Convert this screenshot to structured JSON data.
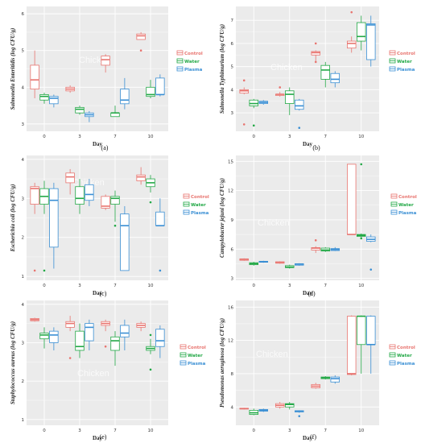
{
  "colors": {
    "control": "#e8746f",
    "water": "#22a846",
    "plasma": "#3a8fd4",
    "panel_bg": "#ebebeb",
    "grid": "#ffffff"
  },
  "legend": [
    "Control",
    "Water",
    "Plasma"
  ],
  "watermark": "Chicken",
  "chart_data": [
    {
      "type": "box",
      "panel_label": "(a)",
      "ylabel": "Salmonella Enteritidis (log CFU/g)",
      "xlabel": "Day",
      "categories": [
        "0",
        "3",
        "7",
        "10"
      ],
      "ylim": [
        2.8,
        6.2
      ],
      "yticks": [
        "3",
        "4",
        "5",
        "6"
      ],
      "series": [
        {
          "name": "Control",
          "boxes": [
            {
              "min": 3.7,
              "q1": 3.95,
              "med": 4.2,
              "q3": 4.6,
              "max": 5.0
            },
            {
              "min": 3.85,
              "q1": 3.9,
              "med": 3.95,
              "q3": 4.0,
              "max": 4.05
            },
            {
              "min": 4.4,
              "q1": 4.6,
              "med": 4.75,
              "q3": 4.85,
              "max": 4.9
            },
            {
              "min": 5.3,
              "q1": 5.3,
              "med": 5.4,
              "q3": 5.45,
              "max": 5.5
            }
          ],
          "outliers": [
            [],
            [],
            [],
            [
              5.0
            ]
          ]
        },
        {
          "name": "Water",
          "boxes": [
            {
              "min": 3.55,
              "q1": 3.65,
              "med": 3.75,
              "q3": 3.8,
              "max": 3.85
            },
            {
              "min": 3.25,
              "q1": 3.3,
              "med": 3.4,
              "q3": 3.45,
              "max": 3.5
            },
            {
              "min": 3.2,
              "q1": 3.2,
              "med": 3.3,
              "q3": 3.3,
              "max": 3.5
            },
            {
              "min": 3.7,
              "q1": 3.75,
              "med": 3.8,
              "q3": 4.0,
              "max": 4.2
            }
          ],
          "outliers": [
            [],
            [],
            [],
            []
          ]
        },
        {
          "name": "Plasma",
          "boxes": [
            {
              "min": 3.45,
              "q1": 3.55,
              "med": 3.7,
              "q3": 3.75,
              "max": 3.8
            },
            {
              "min": 3.05,
              "q1": 3.2,
              "med": 3.25,
              "q3": 3.3,
              "max": 3.35
            },
            {
              "min": 3.4,
              "q1": 3.55,
              "med": 3.65,
              "q3": 3.95,
              "max": 4.25
            },
            {
              "min": 3.75,
              "q1": 3.8,
              "med": 3.8,
              "q3": 4.25,
              "max": 4.35
            }
          ],
          "outliers": [
            [],
            [],
            [],
            []
          ]
        }
      ]
    },
    {
      "type": "box",
      "panel_label": "(b)",
      "ylabel": "Salmonella Typhimurium (log CFU/g)",
      "xlabel": "Day",
      "categories": [
        "0",
        "3",
        "7",
        "10"
      ],
      "ylim": [
        2.2,
        7.6
      ],
      "yticks": [
        "3",
        "4",
        "5",
        "6",
        "7"
      ],
      "series": [
        {
          "name": "Control",
          "boxes": [
            {
              "min": 3.8,
              "q1": 3.85,
              "med": 3.95,
              "q3": 4.0,
              "max": 4.1
            },
            {
              "min": 3.7,
              "q1": 3.75,
              "med": 3.8,
              "q3": 3.8,
              "max": 3.9
            },
            {
              "min": 5.2,
              "q1": 5.5,
              "med": 5.6,
              "q3": 5.65,
              "max": 5.7
            },
            {
              "min": 5.6,
              "q1": 5.8,
              "med": 6.0,
              "q3": 6.1,
              "max": 6.3
            }
          ],
          "outliers": [
            [
              2.5,
              4.4
            ],
            [
              4.1
            ],
            [
              5.2,
              6.0
            ],
            [
              7.35
            ]
          ]
        },
        {
          "name": "Water",
          "boxes": [
            {
              "min": 3.2,
              "q1": 3.3,
              "med": 3.4,
              "q3": 3.55,
              "max": 3.6
            },
            {
              "min": 2.9,
              "q1": 3.4,
              "med": 3.8,
              "q3": 3.95,
              "max": 4.1
            },
            {
              "min": 4.1,
              "q1": 4.45,
              "med": 4.85,
              "q3": 5.05,
              "max": 5.2
            },
            {
              "min": 5.7,
              "q1": 6.1,
              "med": 6.3,
              "q3": 6.9,
              "max": 7.2
            }
          ],
          "outliers": [
            [
              2.45
            ],
            [],
            [],
            []
          ]
        },
        {
          "name": "Plasma",
          "boxes": [
            {
              "min": 3.35,
              "q1": 3.4,
              "med": 3.45,
              "q3": 3.5,
              "max": 3.55
            },
            {
              "min": 3.1,
              "q1": 3.15,
              "med": 3.3,
              "q3": 3.55,
              "max": 3.6
            },
            {
              "min": 4.1,
              "q1": 4.3,
              "med": 4.45,
              "q3": 4.7,
              "max": 4.8
            },
            {
              "min": 5.0,
              "q1": 5.3,
              "med": 6.8,
              "q3": 6.85,
              "max": 7.2
            }
          ],
          "outliers": [
            [],
            [
              2.35
            ],
            [],
            []
          ]
        }
      ]
    },
    {
      "type": "box",
      "panel_label": "(c)",
      "ylabel": "Escherichia coli (log CFU/g)",
      "xlabel": "Day",
      "categories": [
        "0",
        "3",
        "7",
        "10"
      ],
      "ylim": [
        0.9,
        4.1
      ],
      "yticks": [
        "1",
        "2",
        "3",
        "4"
      ],
      "series": [
        {
          "name": "Control",
          "boxes": [
            {
              "min": 2.6,
              "q1": 2.85,
              "med": 3.25,
              "q3": 3.3,
              "max": 3.4
            },
            {
              "min": 3.1,
              "q1": 3.4,
              "med": 3.55,
              "q3": 3.65,
              "max": 3.75
            },
            {
              "min": 2.7,
              "q1": 2.75,
              "med": 2.8,
              "q3": 3.05,
              "max": 3.1
            },
            {
              "min": 3.35,
              "q1": 3.45,
              "med": 3.55,
              "q3": 3.6,
              "max": 3.8
            }
          ],
          "outliers": [
            [
              1.15
            ],
            [],
            [],
            []
          ]
        },
        {
          "name": "Water",
          "boxes": [
            {
              "min": 2.6,
              "q1": 2.85,
              "med": 3.05,
              "q3": 3.25,
              "max": 3.45
            },
            {
              "min": 2.6,
              "q1": 2.85,
              "med": 3.0,
              "q3": 3.3,
              "max": 3.5
            },
            {
              "min": 2.4,
              "q1": 2.85,
              "med": 3.0,
              "q3": 3.05,
              "max": 3.2
            },
            {
              "min": 3.15,
              "q1": 3.3,
              "med": 3.4,
              "q3": 3.5,
              "max": 3.6
            }
          ],
          "outliers": [
            [
              1.15
            ],
            [],
            [
              2.3
            ],
            [
              2.9
            ]
          ]
        },
        {
          "name": "Plasma",
          "boxes": [
            {
              "min": 1.2,
              "q1": 1.75,
              "med": 2.95,
              "q3": 3.25,
              "max": 3.4
            },
            {
              "min": 2.8,
              "q1": 2.95,
              "med": 3.1,
              "q3": 3.35,
              "max": 3.5
            },
            {
              "min": 1.15,
              "q1": 1.15,
              "med": 2.3,
              "q3": 2.6,
              "max": 2.8
            },
            {
              "min": 2.3,
              "q1": 2.3,
              "med": 2.3,
              "q3": 2.65,
              "max": 3.0
            }
          ],
          "outliers": [
            [],
            [],
            [],
            [
              1.15
            ]
          ]
        }
      ]
    },
    {
      "type": "box",
      "panel_label": "(d)",
      "ylabel": "Campylobacter jejuni (log CFU/g)",
      "xlabel": "Day",
      "categories": [
        "0",
        "3",
        "7",
        "10"
      ],
      "ylim": [
        2.8,
        15.6
      ],
      "yticks": [
        "3",
        "6",
        "9",
        "12",
        "15"
      ],
      "series": [
        {
          "name": "Control",
          "boxes": [
            {
              "min": 4.8,
              "q1": 4.85,
              "med": 4.95,
              "q3": 5.0,
              "max": 5.05
            },
            {
              "min": 4.5,
              "q1": 4.55,
              "med": 4.6,
              "q3": 4.7,
              "max": 4.75
            },
            {
              "min": 5.6,
              "q1": 5.9,
              "med": 6.1,
              "q3": 6.15,
              "max": 6.3
            },
            {
              "min": 7.5,
              "q1": 7.5,
              "med": 7.5,
              "q3": 14.7,
              "max": 14.7
            }
          ],
          "outliers": [
            [],
            [],
            [
              6.9
            ],
            []
          ]
        },
        {
          "name": "Water",
          "boxes": [
            {
              "min": 4.3,
              "q1": 4.4,
              "med": 4.5,
              "q3": 4.6,
              "max": 4.7
            },
            {
              "min": 4.0,
              "q1": 4.1,
              "med": 4.15,
              "q3": 4.3,
              "max": 4.4
            },
            {
              "min": 5.7,
              "q1": 5.8,
              "med": 5.9,
              "q3": 6.1,
              "max": 6.2
            },
            {
              "min": 7.2,
              "q1": 7.3,
              "med": 7.4,
              "q3": 7.5,
              "max": 7.6
            }
          ],
          "outliers": [
            [],
            [],
            [],
            [
              14.7,
              7.1
            ]
          ]
        },
        {
          "name": "Plasma",
          "boxes": [
            {
              "min": 4.6,
              "q1": 4.65,
              "med": 4.7,
              "q3": 4.75,
              "max": 4.8
            },
            {
              "min": 4.3,
              "q1": 4.35,
              "med": 4.45,
              "q3": 4.5,
              "max": 4.55
            },
            {
              "min": 5.8,
              "q1": 5.85,
              "med": 5.95,
              "q3": 6.05,
              "max": 6.2
            },
            {
              "min": 6.7,
              "q1": 6.8,
              "med": 7.0,
              "q3": 7.25,
              "max": 7.5
            }
          ],
          "outliers": [
            [],
            [],
            [],
            [
              3.9
            ]
          ]
        }
      ]
    },
    {
      "type": "box",
      "panel_label": "(e)",
      "ylabel": "Staphylococcus aureus (log CFU/g)",
      "xlabel": "Day",
      "categories": [
        "0",
        "3",
        "7",
        "10"
      ],
      "ylim": [
        0.85,
        4.1
      ],
      "yticks": [
        "1",
        "2",
        "3",
        "4"
      ],
      "series": [
        {
          "name": "Control",
          "boxes": [
            {
              "min": 3.55,
              "q1": 3.57,
              "med": 3.6,
              "q3": 3.63,
              "max": 3.65
            },
            {
              "min": 3.3,
              "q1": 3.4,
              "med": 3.5,
              "q3": 3.55,
              "max": 3.7
            },
            {
              "min": 3.3,
              "q1": 3.45,
              "med": 3.5,
              "q3": 3.55,
              "max": 3.6
            },
            {
              "min": 3.3,
              "q1": 3.4,
              "med": 3.45,
              "q3": 3.5,
              "max": 3.55
            }
          ],
          "outliers": [
            [],
            [
              2.6
            ],
            [
              2.9
            ],
            []
          ]
        },
        {
          "name": "Water",
          "boxes": [
            {
              "min": 2.85,
              "q1": 3.1,
              "med": 3.2,
              "q3": 3.25,
              "max": 3.4
            },
            {
              "min": 2.6,
              "q1": 2.8,
              "med": 2.9,
              "q3": 3.3,
              "max": 3.5
            },
            {
              "min": 2.4,
              "q1": 2.8,
              "med": 3.05,
              "q3": 3.15,
              "max": 3.3
            },
            {
              "min": 2.7,
              "q1": 2.8,
              "med": 2.85,
              "q3": 2.9,
              "max": 3.1
            }
          ],
          "outliers": [
            [],
            [],
            [],
            [
              2.3,
              3.2
            ]
          ]
        },
        {
          "name": "Plasma",
          "boxes": [
            {
              "min": 2.8,
              "q1": 3.0,
              "med": 3.2,
              "q3": 3.3,
              "max": 3.4
            },
            {
              "min": 2.8,
              "q1": 3.05,
              "med": 3.4,
              "q3": 3.5,
              "max": 3.6
            },
            {
              "min": 2.8,
              "q1": 3.15,
              "med": 3.25,
              "q3": 3.45,
              "max": 3.6
            },
            {
              "min": 2.6,
              "q1": 2.9,
              "med": 3.05,
              "q3": 3.35,
              "max": 3.45
            }
          ],
          "outliers": [
            [],
            [],
            [],
            []
          ]
        }
      ]
    },
    {
      "type": "box",
      "panel_label": "(f)",
      "ylabel": "Pseudomonas aeruginosa (log CFU/g)",
      "xlabel": "Day",
      "categories": [
        "0",
        "3",
        "7",
        "10"
      ],
      "ylim": [
        1.8,
        16.8
      ],
      "yticks": [
        "4",
        "8",
        "12",
        "16"
      ],
      "series": [
        {
          "name": "Control",
          "boxes": [
            {
              "min": 3.7,
              "q1": 3.75,
              "med": 3.8,
              "q3": 3.85,
              "max": 3.9
            },
            {
              "min": 3.8,
              "q1": 4.0,
              "med": 4.2,
              "q3": 4.4,
              "max": 4.6
            },
            {
              "min": 6.2,
              "q1": 6.3,
              "med": 6.5,
              "q3": 6.7,
              "max": 6.9
            },
            {
              "min": 7.8,
              "q1": 7.9,
              "med": 8.0,
              "q3": 14.9,
              "max": 15.0
            }
          ],
          "outliers": [
            [],
            [],
            [],
            []
          ]
        },
        {
          "name": "Water",
          "boxes": [
            {
              "min": 3.0,
              "q1": 3.1,
              "med": 3.3,
              "q3": 3.6,
              "max": 3.8
            },
            {
              "min": 3.7,
              "q1": 4.0,
              "med": 4.3,
              "q3": 4.4,
              "max": 4.6
            },
            {
              "min": 7.3,
              "q1": 7.4,
              "med": 7.5,
              "q3": 7.6,
              "max": 7.7
            },
            {
              "min": 8.0,
              "q1": 11.5,
              "med": 14.9,
              "q3": 14.9,
              "max": 15.0
            }
          ],
          "outliers": [
            [],
            [],
            [],
            []
          ]
        },
        {
          "name": "Plasma",
          "boxes": [
            {
              "min": 3.4,
              "q1": 3.5,
              "med": 3.6,
              "q3": 3.7,
              "max": 3.8
            },
            {
              "min": 3.3,
              "q1": 3.4,
              "med": 3.5,
              "q3": 3.55,
              "max": 3.6
            },
            {
              "min": 6.8,
              "q1": 7.0,
              "med": 7.4,
              "q3": 7.6,
              "max": 7.8
            },
            {
              "min": 8.0,
              "q1": 11.5,
              "med": 11.5,
              "q3": 14.9,
              "max": 15.0
            }
          ],
          "outliers": [
            [],
            [
              2.9
            ],
            [],
            []
          ]
        }
      ]
    }
  ]
}
